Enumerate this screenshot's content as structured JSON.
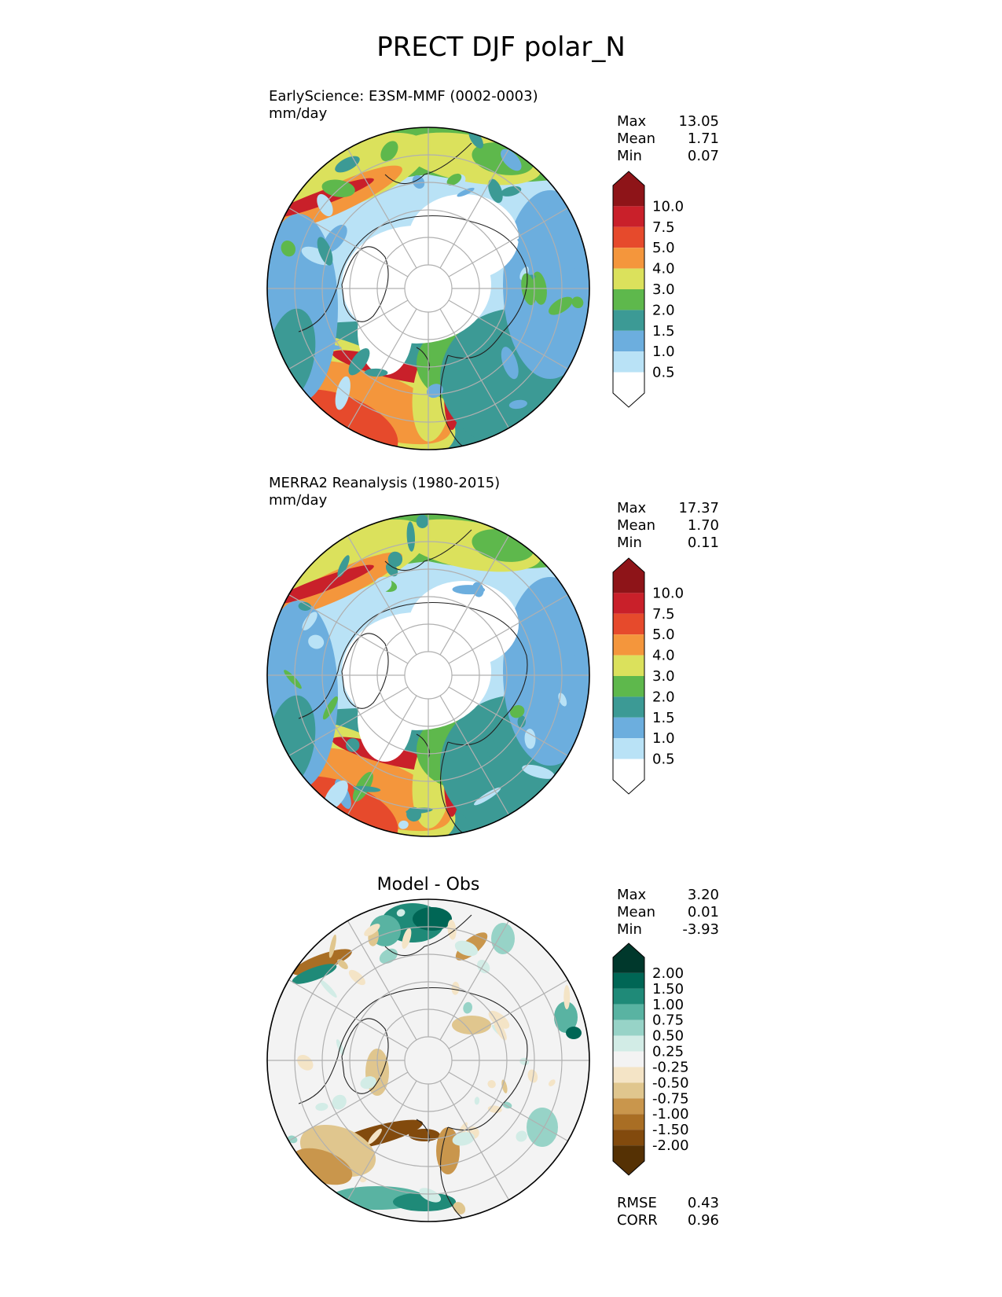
{
  "title": "PRECT DJF polar_N",
  "panels": [
    {
      "id": "test",
      "name": "EarlyScience: E3SM-MMF (0002-0003)",
      "units": "mm/day",
      "stats": [
        {
          "label": "Max",
          "value": "13.05"
        },
        {
          "label": "Mean",
          "value": "1.71"
        },
        {
          "label": "Min",
          "value": "0.07"
        }
      ]
    },
    {
      "id": "reference",
      "name": "MERRA2 Reanalysis (1980-2015)",
      "units": "mm/day",
      "stats": [
        {
          "label": "Max",
          "value": "17.37"
        },
        {
          "label": "Mean",
          "value": "1.70"
        },
        {
          "label": "Min",
          "value": "0.11"
        }
      ]
    },
    {
      "id": "diff",
      "name": "Model - Obs",
      "stats": [
        {
          "label": "Max",
          "value": "3.20"
        },
        {
          "label": "Mean",
          "value": "0.01"
        },
        {
          "label": "Min",
          "value": "-3.93"
        }
      ],
      "metrics": [
        {
          "label": "RMSE",
          "value": "0.43"
        },
        {
          "label": "CORR",
          "value": "0.96"
        }
      ]
    }
  ],
  "colorbar_precip": {
    "levels": [
      "10.0",
      "7.5",
      "5.0",
      "4.0",
      "3.0",
      "2.0",
      "1.5",
      "1.0",
      "0.5"
    ],
    "colors": [
      "#8e1418",
      "#c9202a",
      "#e64a2c",
      "#f4963c",
      "#dbe15c",
      "#5eb84c",
      "#3c9a95",
      "#6caede",
      "#b9e2f6",
      "#ffffff"
    ]
  },
  "colorbar_diff": {
    "levels": [
      "2.00",
      "1.50",
      "1.00",
      "0.75",
      "0.50",
      "0.25",
      "-0.25",
      "-0.50",
      "-0.75",
      "-1.00",
      "-1.50",
      "-2.00"
    ],
    "colors": [
      "#00382c",
      "#006655",
      "#1f8a78",
      "#59b3a2",
      "#97d3c7",
      "#d2ece6",
      "#f3f3f3",
      "#f4e4c6",
      "#e0c68e",
      "#c9964c",
      "#a96e24",
      "#824a0d",
      "#553104"
    ]
  },
  "chart_data": [
    {
      "type": "heatmap",
      "title": "EarlyScience: E3SM-MMF (0002-0003)",
      "units": "mm/day",
      "projection": "north polar stereographic",
      "max": 13.05,
      "mean": 1.71,
      "min": 0.07,
      "colorbar_levels": [
        0.5,
        1.0,
        1.5,
        2.0,
        3.0,
        4.0,
        5.0,
        7.5,
        10.0
      ]
    },
    {
      "type": "heatmap",
      "title": "MERRA2 Reanalysis (1980-2015)",
      "units": "mm/day",
      "projection": "north polar stereographic",
      "max": 17.37,
      "mean": 1.7,
      "min": 0.11,
      "colorbar_levels": [
        0.5,
        1.0,
        1.5,
        2.0,
        3.0,
        4.0,
        5.0,
        7.5,
        10.0
      ]
    },
    {
      "type": "heatmap",
      "title": "Model - Obs",
      "projection": "north polar stereographic",
      "max": 3.2,
      "mean": 0.01,
      "min": -3.93,
      "rmse": 0.43,
      "corr": 0.96,
      "colorbar_levels": [
        -2.0,
        -1.5,
        -1.0,
        -0.75,
        -0.5,
        -0.25,
        0.25,
        0.5,
        0.75,
        1.0,
        1.5,
        2.0
      ]
    }
  ]
}
